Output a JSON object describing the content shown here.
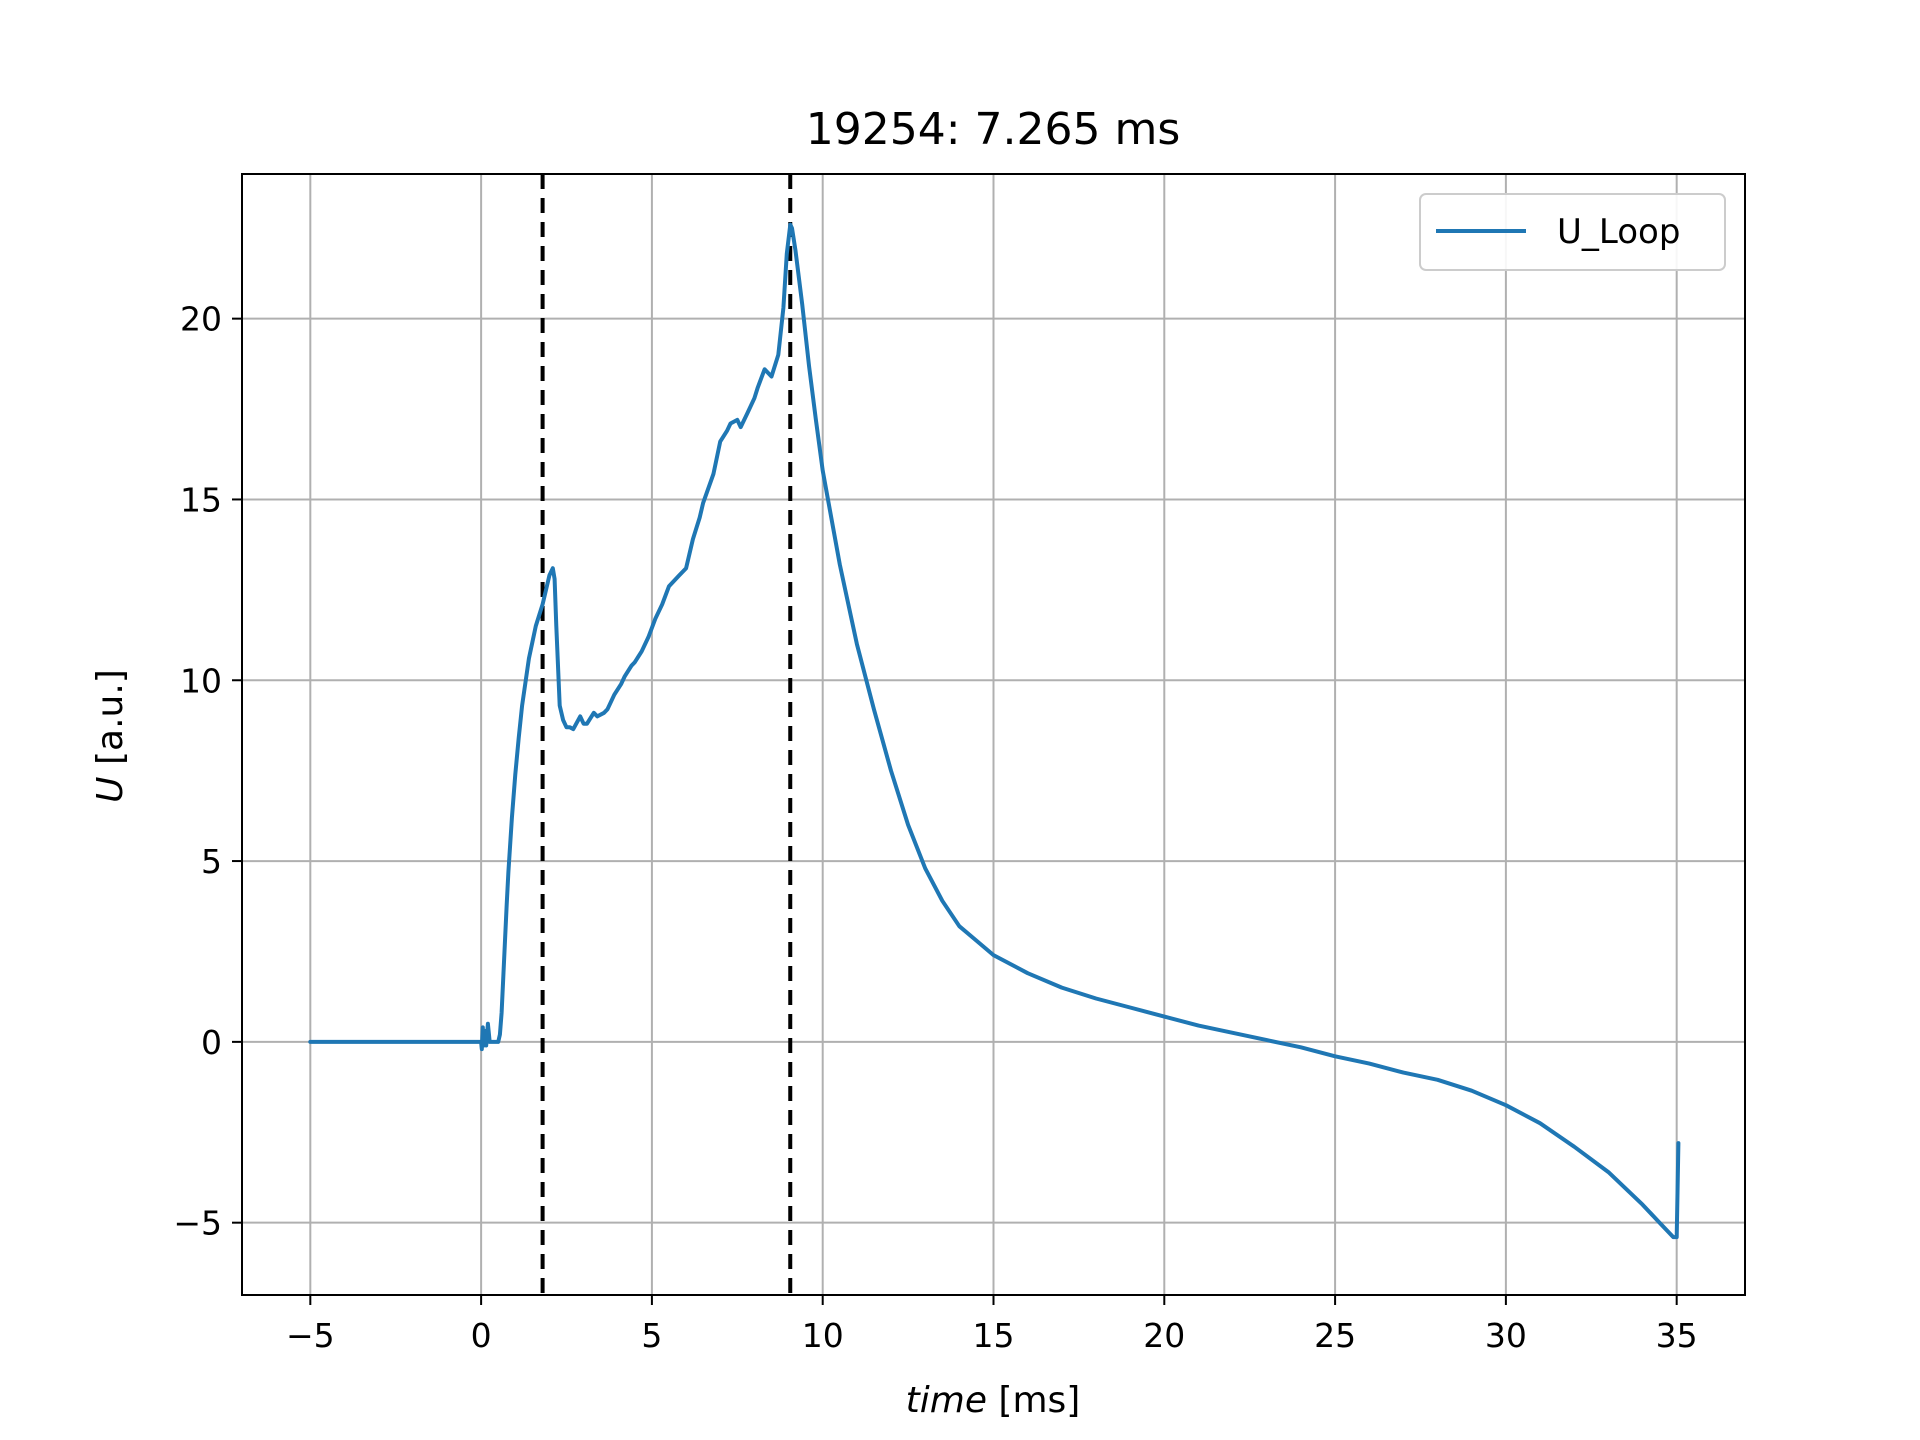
{
  "title": "19254: 7.265 ms",
  "chart_data": {
    "type": "line",
    "title": "19254: 7.265 ms",
    "xlabel_italic": "time",
    "xlabel_unit": " [ms]",
    "ylabel_italic": "U",
    "ylabel_unit": " [a.u.]",
    "xlim": [
      -7,
      37
    ],
    "ylim": [
      -7,
      24
    ],
    "xticks": [
      -5,
      0,
      5,
      10,
      15,
      20,
      25,
      30,
      35
    ],
    "xtick_labels": [
      "−5",
      "0",
      "5",
      "10",
      "15",
      "20",
      "25",
      "30",
      "35"
    ],
    "yticks": [
      -5,
      0,
      5,
      10,
      15,
      20
    ],
    "ytick_labels": [
      "−5",
      "0",
      "5",
      "10",
      "15",
      "20"
    ],
    "grid": true,
    "legend_position": "top-right",
    "vlines": [
      1.8,
      9.05
    ],
    "series": [
      {
        "name": "U_Loop",
        "color": "#1f77b4",
        "x": [
          -5,
          -2,
          0,
          0.02,
          0.05,
          0.08,
          0.12,
          0.15,
          0.2,
          0.25,
          0.3,
          0.4,
          0.5,
          0.55,
          0.6,
          0.65,
          0.7,
          0.75,
          0.8,
          0.9,
          1.0,
          1.1,
          1.2,
          1.4,
          1.6,
          1.8,
          1.9,
          2.0,
          2.1,
          2.15,
          2.2,
          2.3,
          2.4,
          2.5,
          2.6,
          2.7,
          2.9,
          3.0,
          3.1,
          3.3,
          3.4,
          3.6,
          3.7,
          3.9,
          4.1,
          4.2,
          4.4,
          4.5,
          4.7,
          4.9,
          5.1,
          5.3,
          5.5,
          5.8,
          6.0,
          6.2,
          6.4,
          6.5,
          6.8,
          7.0,
          7.2,
          7.3,
          7.5,
          7.6,
          7.8,
          8.0,
          8.1,
          8.3,
          8.5,
          8.7,
          8.85,
          8.95,
          9.05,
          9.1,
          9.2,
          9.4,
          9.6,
          9.8,
          10.0,
          10.5,
          11.0,
          11.5,
          12.0,
          12.5,
          13.0,
          13.5,
          14.0,
          14.5,
          15.0,
          16.0,
          17.0,
          18.0,
          19.0,
          20.0,
          21.0,
          22.0,
          23.0,
          24.0,
          25.0,
          26.0,
          27.0,
          28.0,
          29.0,
          30.0,
          31.0,
          32.0,
          33.0,
          34.0,
          34.5,
          34.9,
          35.0,
          35.05
        ],
        "y": [
          0,
          0,
          0,
          -0.2,
          0.4,
          -0.1,
          0.3,
          -0.1,
          0.5,
          0.0,
          0.0,
          0.0,
          0.0,
          0.2,
          0.8,
          1.8,
          2.8,
          3.8,
          4.7,
          6.2,
          7.4,
          8.4,
          9.3,
          10.6,
          11.5,
          12.1,
          12.5,
          12.9,
          13.1,
          12.8,
          11.5,
          9.3,
          8.9,
          8.7,
          8.7,
          8.65,
          9.0,
          8.8,
          8.8,
          9.1,
          9.0,
          9.1,
          9.2,
          9.6,
          9.9,
          10.1,
          10.4,
          10.5,
          10.8,
          11.2,
          11.7,
          12.1,
          12.6,
          12.9,
          13.1,
          13.9,
          14.5,
          14.9,
          15.7,
          16.6,
          16.9,
          17.1,
          17.2,
          17.0,
          17.4,
          17.8,
          18.1,
          18.6,
          18.4,
          19.0,
          20.3,
          21.8,
          22.6,
          22.5,
          21.9,
          20.4,
          18.7,
          17.2,
          15.8,
          13.2,
          11.0,
          9.2,
          7.5,
          6.0,
          4.8,
          3.9,
          3.2,
          2.8,
          2.4,
          1.9,
          1.5,
          1.2,
          0.95,
          0.7,
          0.45,
          0.25,
          0.05,
          -0.15,
          -0.4,
          -0.6,
          -0.85,
          -1.05,
          -1.35,
          -1.75,
          -2.25,
          -2.9,
          -3.6,
          -4.5,
          -5.0,
          -5.4,
          -5.4,
          -2.8
        ]
      }
    ]
  }
}
